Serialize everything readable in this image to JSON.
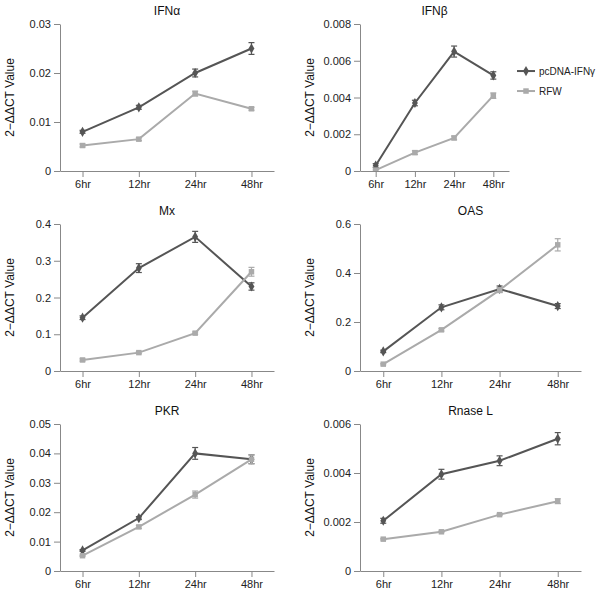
{
  "chart_data": [
    {
      "type": "line",
      "title": "IFNα",
      "y_label": "2−ΔΔCT Value",
      "categories": [
        "6hr",
        "12hr",
        "24hr",
        "48hr"
      ],
      "ylim": [
        0,
        0.03
      ],
      "yticks": [
        0,
        0.01,
        0.02,
        0.03
      ],
      "series": [
        {
          "name": "pcDNA-IFNγ",
          "color": "#555555",
          "marker": "diamond",
          "values": [
            0.008,
            0.013,
            0.02,
            0.025
          ],
          "errors": [
            0.0003,
            0.0004,
            0.0008,
            0.0012
          ]
        },
        {
          "name": "RFW",
          "color": "#aaaaaa",
          "marker": "square",
          "values": [
            0.0052,
            0.0065,
            0.0158,
            0.0127
          ],
          "errors": [
            0.0003,
            0.0003,
            0.0005,
            0.0003
          ]
        }
      ]
    },
    {
      "type": "line",
      "title": "IFNβ",
      "y_label": "2−ΔΔCT Value",
      "legend": "right",
      "categories": [
        "6hr",
        "12hr",
        "24hr",
        "48hr"
      ],
      "ylim": [
        0,
        0.008
      ],
      "yticks": [
        0,
        0.002,
        0.004,
        0.006,
        0.008
      ],
      "series": [
        {
          "name": "pcDNA-IFNγ",
          "color": "#555555",
          "marker": "diamond",
          "values": [
            0.0003,
            0.0037,
            0.0065,
            0.0052
          ],
          "errors": [
            0.0001,
            0.00015,
            0.0003,
            0.0002
          ]
        },
        {
          "name": "RFW",
          "color": "#aaaaaa",
          "marker": "square",
          "values": [
            5e-05,
            0.001,
            0.0018,
            0.0041
          ],
          "errors": [
            5e-05,
            0.0001,
            0.0001,
            0.00015
          ]
        }
      ]
    },
    {
      "type": "line",
      "title": "Mx",
      "y_label": "2−ΔΔCT Value",
      "categories": [
        "6hr",
        "12hr",
        "24hr",
        "48hr"
      ],
      "ylim": [
        0,
        0.4
      ],
      "yticks": [
        0,
        0.1,
        0.2,
        0.3,
        0.4
      ],
      "series": [
        {
          "name": "pcDNA-IFNγ",
          "color": "#555555",
          "marker": "diamond",
          "values": [
            0.145,
            0.28,
            0.365,
            0.23
          ],
          "errors": [
            0.005,
            0.012,
            0.015,
            0.01
          ]
        },
        {
          "name": "RFW",
          "color": "#aaaaaa",
          "marker": "square",
          "values": [
            0.03,
            0.05,
            0.103,
            0.27
          ],
          "errors": [
            0.003,
            0.003,
            0.003,
            0.012
          ]
        }
      ]
    },
    {
      "type": "line",
      "title": "OAS",
      "y_label": "2−ΔΔCT Value",
      "categories": [
        "6hr",
        "12hr",
        "24hr",
        "48hr"
      ],
      "ylim": [
        0,
        0.6
      ],
      "yticks": [
        0,
        0.2,
        0.4,
        0.6
      ],
      "series": [
        {
          "name": "pcDNA-IFNγ",
          "color": "#555555",
          "marker": "diamond",
          "values": [
            0.08,
            0.26,
            0.335,
            0.265
          ],
          "errors": [
            0.005,
            0.01,
            0.012,
            0.01
          ]
        },
        {
          "name": "RFW",
          "color": "#aaaaaa",
          "marker": "square",
          "values": [
            0.028,
            0.168,
            0.33,
            0.515
          ],
          "errors": [
            0.003,
            0.005,
            0.01,
            0.025
          ]
        }
      ]
    },
    {
      "type": "line",
      "title": "PKR",
      "y_label": "2−ΔΔCT Value",
      "categories": [
        "6hr",
        "12hr",
        "24hr",
        "48hr"
      ],
      "ylim": [
        0,
        0.05
      ],
      "yticks": [
        0,
        0.01,
        0.02,
        0.03,
        0.04,
        0.05
      ],
      "series": [
        {
          "name": "pcDNA-IFNγ",
          "color": "#555555",
          "marker": "diamond",
          "values": [
            0.007,
            0.018,
            0.04,
            0.038
          ],
          "errors": [
            0.0003,
            0.0005,
            0.002,
            0.0015
          ]
        },
        {
          "name": "RFW",
          "color": "#aaaaaa",
          "marker": "square",
          "values": [
            0.0052,
            0.015,
            0.026,
            0.038
          ],
          "errors": [
            0.0002,
            0.0005,
            0.0012,
            0.0015
          ]
        }
      ]
    },
    {
      "type": "line",
      "title": "Rnase L",
      "y_label": "2−ΔΔCT Value",
      "categories": [
        "6hr",
        "12hr",
        "24hr",
        "48hr"
      ],
      "ylim": [
        0,
        0.006
      ],
      "yticks": [
        0,
        0.002,
        0.004,
        0.006
      ],
      "series": [
        {
          "name": "pcDNA-IFNγ",
          "color": "#555555",
          "marker": "diamond",
          "values": [
            0.00205,
            0.00395,
            0.0045,
            0.0054
          ],
          "errors": [
            0.0001,
            0.0002,
            0.0002,
            0.00025
          ]
        },
        {
          "name": "RFW",
          "color": "#aaaaaa",
          "marker": "square",
          "values": [
            0.0013,
            0.0016,
            0.0023,
            0.00285
          ],
          "errors": [
            3e-05,
            3e-05,
            3e-05,
            0.0001
          ]
        }
      ]
    }
  ]
}
